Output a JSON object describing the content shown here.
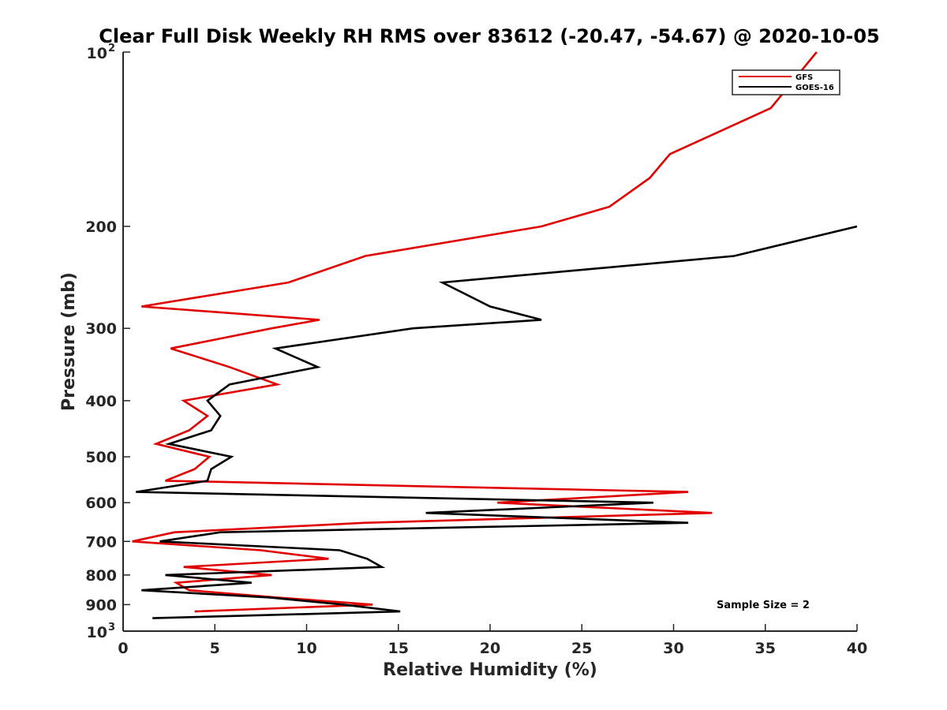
{
  "chart_data": {
    "type": "line",
    "title": "Clear Full Disk Weekly RH RMS over 83612 (-20.47, -54.67) @ 2020-10-05",
    "xlabel": "Relative Humidity (%)",
    "ylabel": "Pressure (mb)",
    "xlim": [
      0,
      40
    ],
    "ylim": [
      100,
      1000
    ],
    "y_scale": "log",
    "y_reversed": true,
    "x_ticks": [
      "0",
      "5",
      "10",
      "15",
      "20",
      "25",
      "30",
      "35",
      "40"
    ],
    "y_ticks": [
      {
        "value": 100,
        "base": "10",
        "exp": "2"
      },
      {
        "value": 200,
        "label": "200"
      },
      {
        "value": 300,
        "label": "300"
      },
      {
        "value": 400,
        "label": "400"
      },
      {
        "value": 500,
        "label": "500"
      },
      {
        "value": 600,
        "label": "600"
      },
      {
        "value": 700,
        "label": "700"
      },
      {
        "value": 800,
        "label": "800"
      },
      {
        "value": 900,
        "label": "900"
      },
      {
        "value": 1000,
        "base": "10",
        "exp": "3"
      }
    ],
    "grid": false,
    "legend_position": "top-right",
    "annotation": "Sample Size = 2",
    "series": [
      {
        "name": "GFS",
        "color": "#e00000",
        "points": [
          [
            37.8,
            100
          ],
          [
            35.3,
            125
          ],
          [
            29.8,
            150
          ],
          [
            28.7,
            165
          ],
          [
            26.5,
            185
          ],
          [
            22.8,
            200
          ],
          [
            13.2,
            225
          ],
          [
            9.0,
            250
          ],
          [
            1.0,
            275
          ],
          [
            10.7,
            290
          ],
          [
            8.1,
            300
          ],
          [
            2.6,
            325
          ],
          [
            5.8,
            350
          ],
          [
            8.4,
            375
          ],
          [
            3.3,
            400
          ],
          [
            4.6,
            425
          ],
          [
            3.6,
            450
          ],
          [
            1.8,
            475
          ],
          [
            4.7,
            500
          ],
          [
            3.9,
            525
          ],
          [
            2.3,
            550
          ],
          [
            30.8,
            575
          ],
          [
            20.4,
            600
          ],
          [
            32.1,
            625
          ],
          [
            13.2,
            650
          ],
          [
            2.8,
            675
          ],
          [
            0.5,
            700
          ],
          [
            7.5,
            725
          ],
          [
            11.2,
            750
          ],
          [
            3.3,
            775
          ],
          [
            8.1,
            800
          ],
          [
            2.9,
            825
          ],
          [
            3.6,
            850
          ],
          [
            8.4,
            875
          ],
          [
            13.6,
            900
          ],
          [
            3.9,
            925
          ]
        ]
      },
      {
        "name": "GOES-16",
        "color": "#000000",
        "points": [
          [
            40.0,
            200
          ],
          [
            33.3,
            225
          ],
          [
            17.4,
            250
          ],
          [
            20.0,
            275
          ],
          [
            22.8,
            290
          ],
          [
            15.8,
            300
          ],
          [
            8.3,
            325
          ],
          [
            10.6,
            350
          ],
          [
            5.8,
            375
          ],
          [
            4.6,
            400
          ],
          [
            5.3,
            425
          ],
          [
            4.8,
            450
          ],
          [
            2.5,
            475
          ],
          [
            5.9,
            500
          ],
          [
            4.8,
            525
          ],
          [
            4.6,
            550
          ],
          [
            0.7,
            575
          ],
          [
            28.9,
            600
          ],
          [
            16.5,
            625
          ],
          [
            30.8,
            650
          ],
          [
            5.3,
            675
          ],
          [
            2.0,
            700
          ],
          [
            11.8,
            725
          ],
          [
            13.3,
            750
          ],
          [
            14.1,
            775
          ],
          [
            2.3,
            800
          ],
          [
            7.0,
            825
          ],
          [
            1.0,
            850
          ],
          [
            8.0,
            875
          ],
          [
            12.0,
            900
          ],
          [
            15.1,
            925
          ],
          [
            1.6,
            950
          ]
        ]
      }
    ]
  }
}
